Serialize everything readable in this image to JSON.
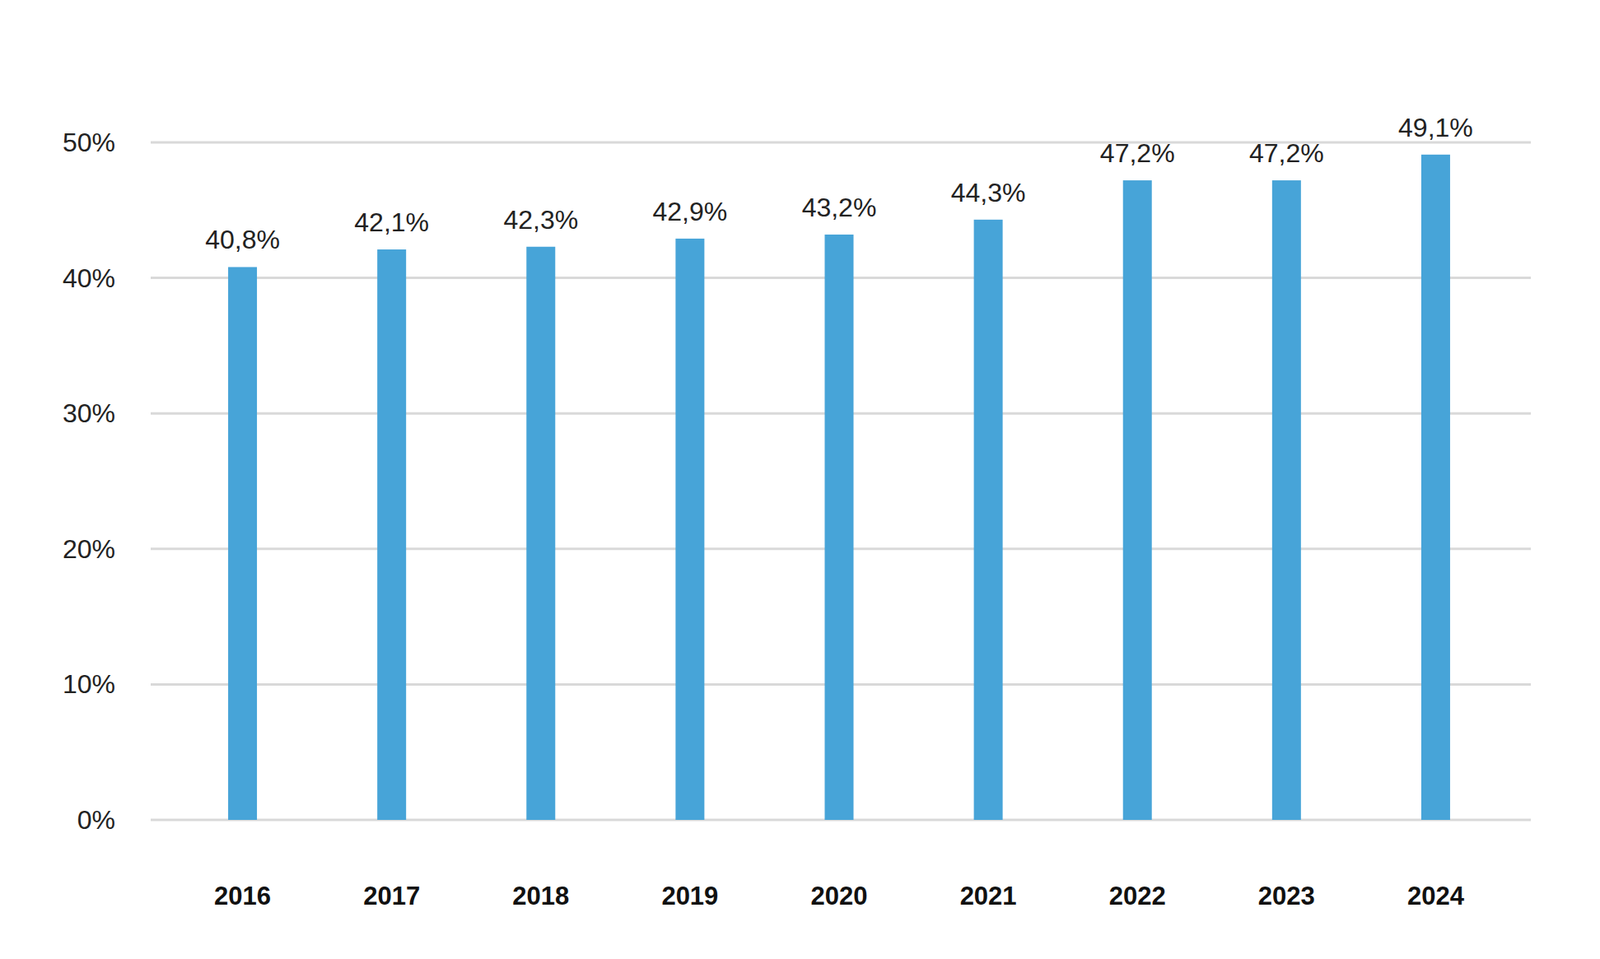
{
  "chart_data": {
    "type": "bar",
    "categories": [
      "2016",
      "2017",
      "2018",
      "2019",
      "2020",
      "2021",
      "2022",
      "2023",
      "2024"
    ],
    "values": [
      40.8,
      42.1,
      42.3,
      42.9,
      43.2,
      44.3,
      47.2,
      47.2,
      49.1
    ],
    "value_labels": [
      "40,8%",
      "42,1%",
      "42,3%",
      "42,9%",
      "43,2%",
      "44,3%",
      "47,2%",
      "47,2%",
      "49,1%"
    ],
    "color": "#47a4d8",
    "ylim": [
      0,
      50
    ],
    "yticks": [
      {
        "value": 0,
        "label": "0%"
      },
      {
        "value": 10,
        "label": "10%"
      },
      {
        "value": 20,
        "label": "20%"
      },
      {
        "value": 30,
        "label": "30%"
      },
      {
        "value": 40,
        "label": "40%"
      },
      {
        "value": 50,
        "label": "50%"
      }
    ],
    "grid": true,
    "data_labels": true
  }
}
